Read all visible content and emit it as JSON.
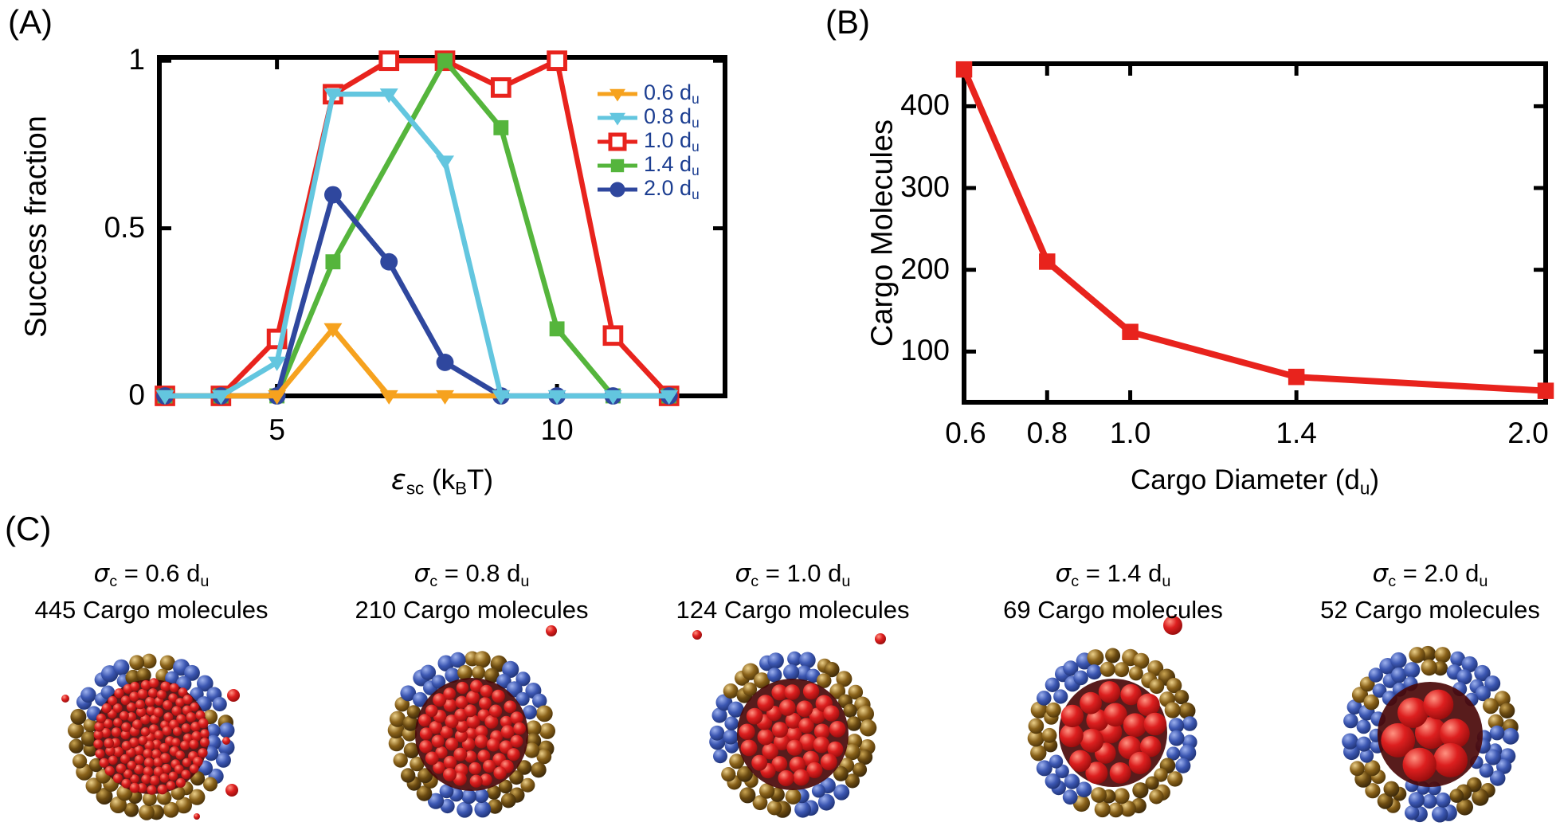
{
  "panels": {
    "a": {
      "label": "(A)",
      "ylabel": "Success fraction",
      "xlabel": {
        "eps": "ε",
        "eps_sub": "sc",
        "k": "(k",
        "k_sub": "B",
        "t": "T)"
      },
      "yticks": [
        "0",
        "0.5",
        "1"
      ],
      "xticks": [
        "5",
        "10"
      ],
      "legend_text_color": "#1C3E91",
      "legend": [
        {
          "text": "0.6 d",
          "sub": "u"
        },
        {
          "text": "0.8 d",
          "sub": "u"
        },
        {
          "text": "1.0 d",
          "sub": "u"
        },
        {
          "text": "1.4 d",
          "sub": "u"
        },
        {
          "text": "2.0 d",
          "sub": "u"
        }
      ]
    },
    "b": {
      "label": "(B)",
      "ylabel": "Cargo Molecules",
      "xlabel": {
        "pre": "Cargo Diameter (d",
        "sub": "u",
        "post": ")"
      },
      "yticks": [
        "100",
        "200",
        "300",
        "400"
      ],
      "xticks": [
        "0.6",
        "0.8",
        "1.0",
        "1.4",
        "2.0"
      ]
    },
    "c": {
      "label": "(C)",
      "items": [
        {
          "sigma": "σ",
          "sigma_sub": "c",
          "eq": " = 0.6 d",
          "unit_sub": "u",
          "count_line": "445 Cargo molecules",
          "sigma_value": 0.6,
          "cargo_count": 445
        },
        {
          "sigma": "σ",
          "sigma_sub": "c",
          "eq": " = 0.8 d",
          "unit_sub": "u",
          "count_line": "210 Cargo molecules",
          "sigma_value": 0.8,
          "cargo_count": 210
        },
        {
          "sigma": "σ",
          "sigma_sub": "c",
          "eq": " = 1.0 d",
          "unit_sub": "u",
          "count_line": "124 Cargo molecules",
          "sigma_value": 1.0,
          "cargo_count": 124
        },
        {
          "sigma": "σ",
          "sigma_sub": "c",
          "eq": " = 1.4 d",
          "unit_sub": "u",
          "count_line": "69 Cargo molecules",
          "sigma_value": 1.4,
          "cargo_count": 69
        },
        {
          "sigma": "σ",
          "sigma_sub": "c",
          "eq": " = 2.0 d",
          "unit_sub": "u",
          "count_line": "52 Cargo molecules",
          "sigma_value": 2.0,
          "cargo_count": 52
        }
      ]
    }
  },
  "chart_data": [
    {
      "id": "panel_a",
      "type": "line",
      "title": "",
      "xlabel": "epsilon_sc (kB T)",
      "ylabel": "Success fraction",
      "xlim": [
        2.9,
        13
      ],
      "ylim": [
        0,
        1.01
      ],
      "xticks": [
        5,
        10
      ],
      "yticks": [
        0,
        0.5,
        1
      ],
      "grid": false,
      "legend_position": "upper right",
      "x": [
        3,
        4,
        5,
        6,
        7,
        8,
        9,
        10,
        11,
        12
      ],
      "series": [
        {
          "name": "0.6 du",
          "color": "#F6A21E",
          "marker": "triangle-down",
          "x": [
            3,
            4,
            5,
            6,
            7,
            8,
            9
          ],
          "values": [
            0,
            0,
            0,
            0.2,
            0,
            0,
            0
          ]
        },
        {
          "name": "0.8 du",
          "color": "#63C6DF",
          "marker": "triangle-down",
          "values": [
            0,
            0,
            0.1,
            0.9,
            0.9,
            0.7,
            0,
            0,
            0,
            0
          ]
        },
        {
          "name": "1.0 du",
          "color": "#E8231D",
          "marker": "square-open",
          "values": [
            0,
            0,
            0.17,
            0.9,
            1,
            1,
            0.92,
            1,
            0.18,
            0
          ]
        },
        {
          "name": "1.4 du",
          "color": "#55B53C",
          "marker": "square",
          "x": [
            3,
            4,
            5,
            6,
            8,
            9,
            10,
            11,
            12
          ],
          "values": [
            0,
            0,
            0,
            0.4,
            1,
            0.8,
            0.2,
            0,
            0
          ]
        },
        {
          "name": "2.0 du",
          "color": "#2F479E",
          "marker": "circle",
          "values": [
            0,
            0,
            0,
            0.6,
            0.4,
            0.1,
            0,
            0,
            0,
            0
          ]
        }
      ],
      "z_order": [
        "1.0 du",
        "1.4 du",
        "2.0 du",
        "0.6 du",
        "0.8 du"
      ]
    },
    {
      "id": "panel_b",
      "type": "line",
      "title": "",
      "xlabel": "Cargo Diameter (du)",
      "ylabel": "Cargo Molecules",
      "xlim": [
        0.6,
        2.0
      ],
      "ylim": [
        38,
        452
      ],
      "xticks": [
        0.6,
        0.8,
        1.0,
        1.4,
        2.0
      ],
      "yticks": [
        100,
        200,
        300,
        400
      ],
      "grid": false,
      "x": [
        0.6,
        0.8,
        1.0,
        1.4,
        2.0
      ],
      "series": [
        {
          "name": "Cargo Molecules",
          "color": "#E8231D",
          "marker": "square",
          "values": [
            445,
            210,
            124,
            69,
            52
          ]
        }
      ]
    }
  ],
  "colors": {
    "axis": "#000000",
    "legend_text": "#1C3E91",
    "cargo_red": "#D91C1C",
    "shell_brown": "#7A5614",
    "shell_blue": "#3A55AE"
  }
}
